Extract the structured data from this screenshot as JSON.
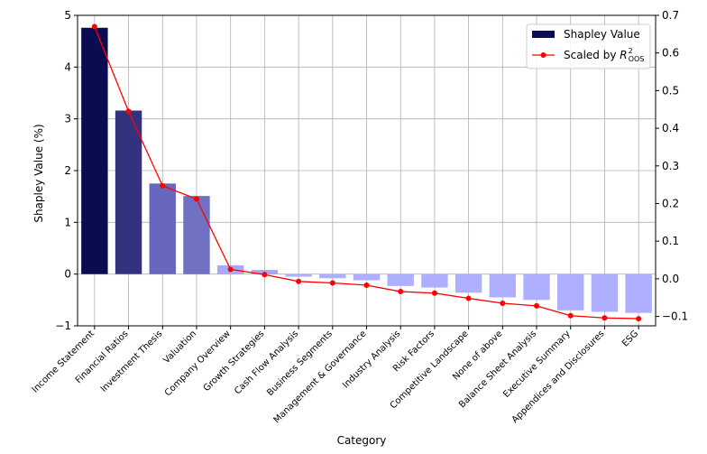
{
  "chart_data": {
    "type": "bar",
    "title": "",
    "xlabel": "Category",
    "ylabel": "Shapley Value (%)",
    "ylim": [
      -1.0,
      5.0
    ],
    "y2lim": [
      -0.125,
      0.7
    ],
    "y_ticks": [
      "−1",
      "0",
      "1",
      "2",
      "3",
      "4",
      "5"
    ],
    "y2_ticks": [
      "−0.1",
      "0.0",
      "0.1",
      "0.2",
      "0.3",
      "0.4",
      "0.5",
      "0.6",
      "0.7"
    ],
    "grid": true,
    "legend_position": "top-right",
    "categories": [
      "Income Statement",
      "Financial Ratios",
      "Investment Thesis",
      "Valuation",
      "Company Overview",
      "Growth Strategies",
      "Cash Flow Analysis",
      "Business Segments",
      "Management & Governance",
      "Industry Analysis",
      "Risk Factors",
      "Competitive Landscape",
      "None of above",
      "Balance Sheet Analysis",
      "Executive Summary",
      "Appendices and Disclosures",
      "ESG"
    ],
    "series": [
      {
        "name": "Shapley Value",
        "kind": "bar",
        "axis": "left",
        "values": [
          4.76,
          3.16,
          1.75,
          1.51,
          0.17,
          0.08,
          -0.05,
          -0.08,
          -0.12,
          -0.23,
          -0.26,
          -0.36,
          -0.45,
          -0.5,
          -0.7,
          -0.73,
          -0.75
        ],
        "colors": [
          "#0b0b52",
          "#32327f",
          "#6767bd",
          "#7171c4",
          "#a9a9f5",
          "#a6a6f3",
          "#afafff",
          "#afafff",
          "#afafff",
          "#afafff",
          "#afafff",
          "#afafff",
          "#afafff",
          "#afafff",
          "#afafff",
          "#afafff",
          "#afafff"
        ]
      },
      {
        "name": "Scaled by R²_OOS",
        "label_main": "Scaled by ",
        "label_math": "R",
        "label_sup": "2",
        "label_sub": "OOS",
        "kind": "line",
        "axis": "right",
        "color": "#ff0000",
        "values": [
          0.67,
          0.445,
          0.247,
          0.212,
          0.025,
          0.011,
          -0.007,
          -0.011,
          -0.017,
          -0.034,
          -0.038,
          -0.052,
          -0.065,
          -0.072,
          -0.098,
          -0.104,
          -0.106
        ]
      }
    ]
  }
}
